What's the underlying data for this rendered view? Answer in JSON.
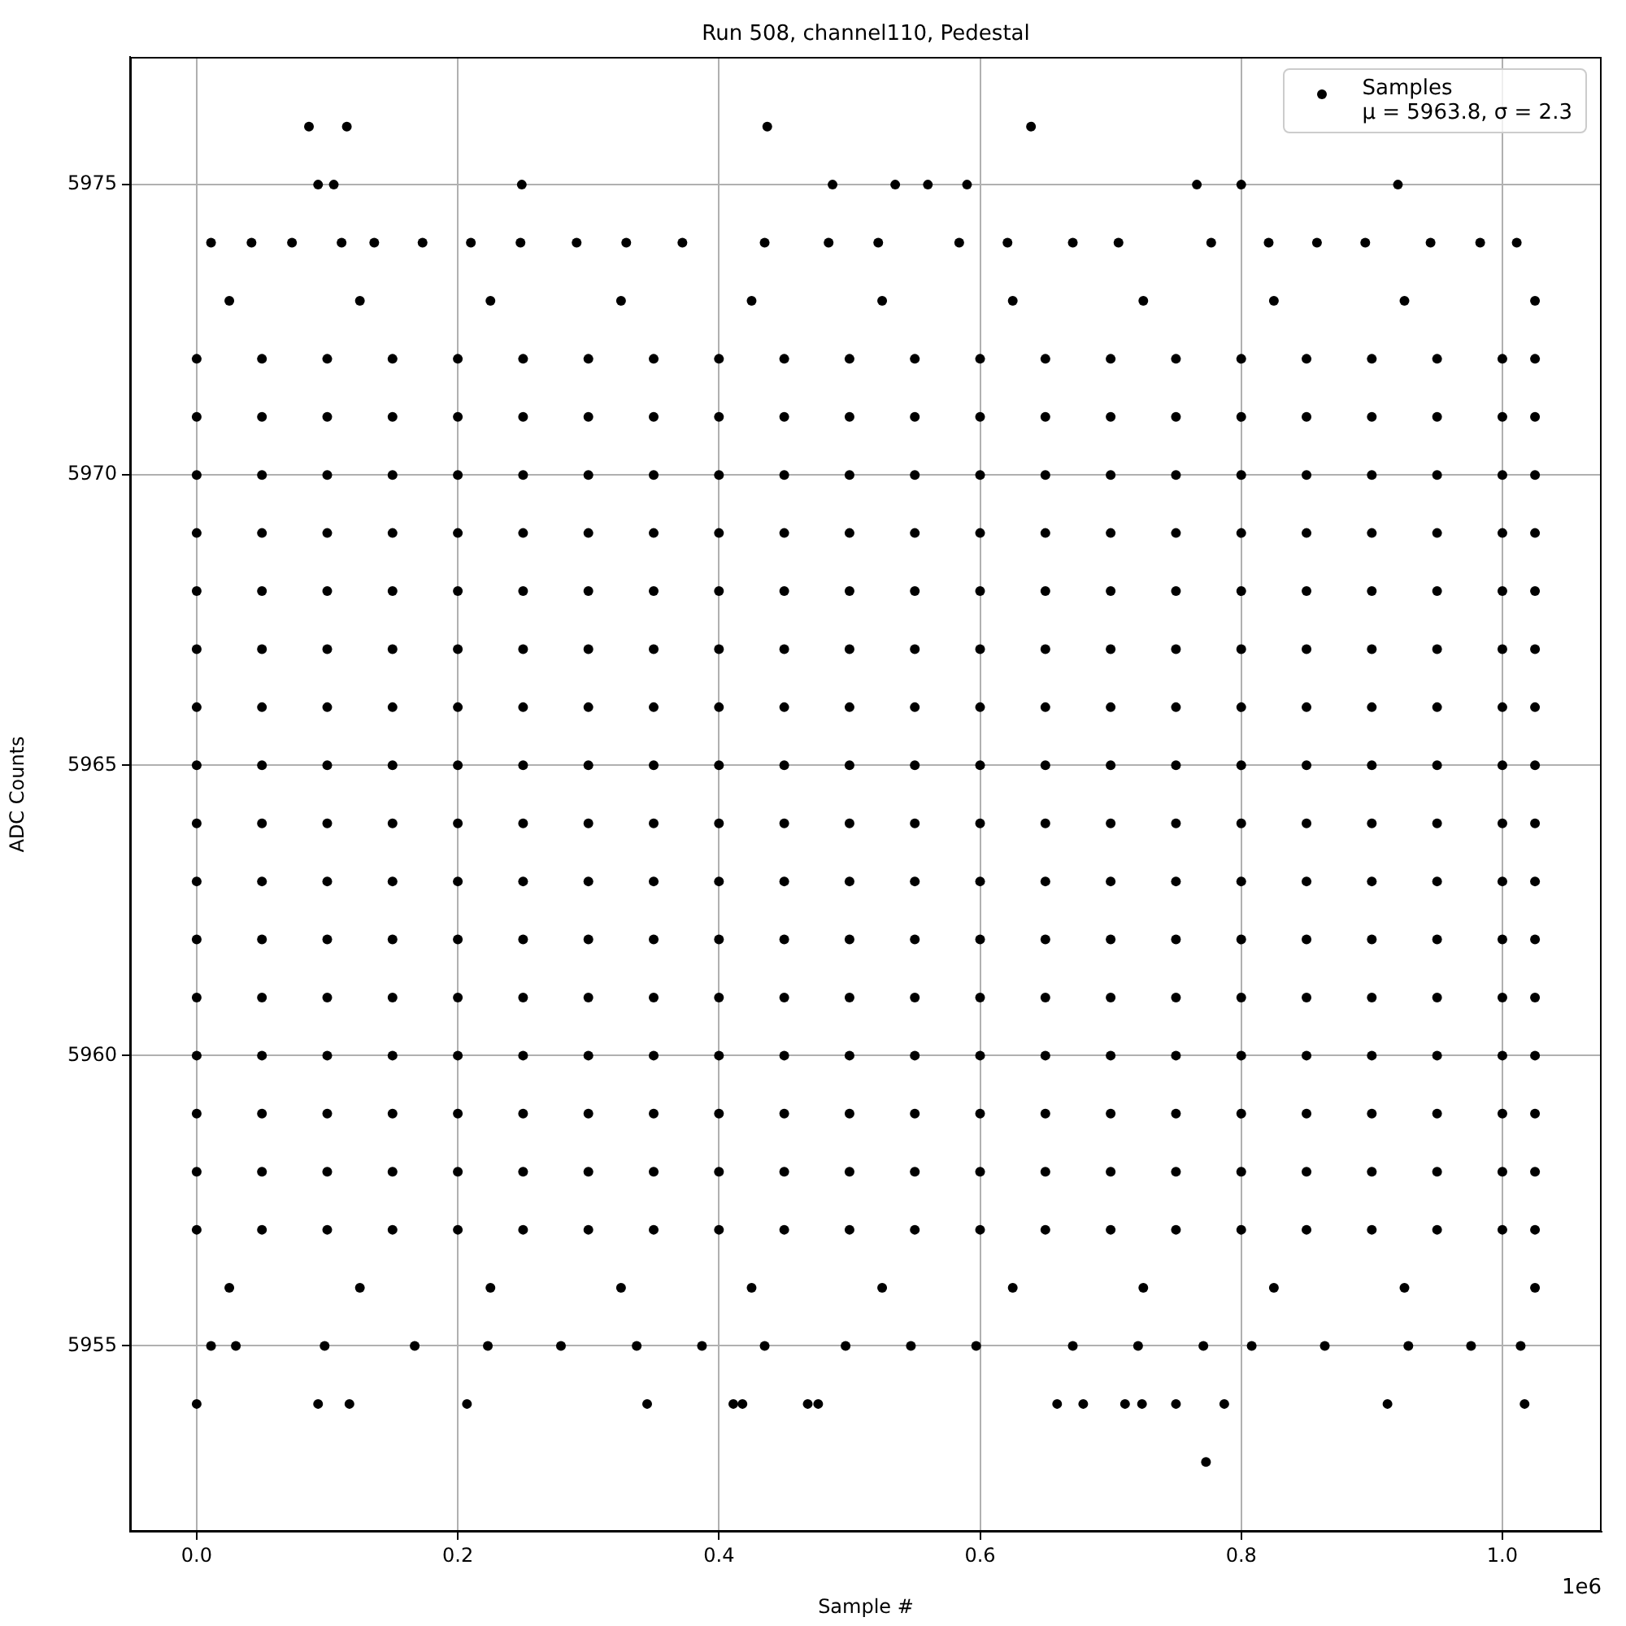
{
  "chart_data": {
    "type": "scatter",
    "title": "Run 508, channel110, Pedestal",
    "xlabel": "Sample #",
    "ylabel": "ADC Counts",
    "annotations": [
      "1e6"
    ],
    "xlim": [
      -0.051,
      1.076
    ],
    "ylim": [
      5951.8,
      5977.2
    ],
    "xticks": [
      {
        "value": 0,
        "label": "0.0"
      },
      0.2,
      0.4,
      0.6,
      0.8,
      {
        "value": 1,
        "label": "1.0"
      }
    ],
    "yticks": [
      5955,
      5960,
      5965,
      5970,
      5975
    ],
    "grid": true,
    "legend": "top right",
    "marker": "circle",
    "series": [
      {
        "name": "Samples\nμ = 5963.8, σ = 2.3",
        "color": "#000000",
        "x": [
          0,
          0.05,
          0.1,
          0.15,
          0.2,
          0.25,
          0.3,
          0.35,
          0.4,
          0.45,
          0.5,
          0.55,
          0.6,
          0.65,
          0.7,
          0.75,
          0.8,
          0.85,
          0.9,
          0.95,
          1,
          1.025,
          0,
          0.05,
          0.1,
          0.15,
          0.2,
          0.25,
          0.3,
          0.35,
          0.4,
          0.45,
          0.5,
          0.55,
          0.6,
          0.65,
          0.7,
          0.75,
          0.8,
          0.85,
          0.9,
          0.95,
          1,
          1.025,
          0,
          0.05,
          0.1,
          0.15,
          0.2,
          0.25,
          0.3,
          0.35,
          0.4,
          0.45,
          0.5,
          0.55,
          0.6,
          0.65,
          0.7,
          0.75,
          0.8,
          0.85,
          0.9,
          0.95,
          1,
          1.025,
          0,
          0.05,
          0.1,
          0.15,
          0.2,
          0.25,
          0.3,
          0.35,
          0.4,
          0.45,
          0.5,
          0.55,
          0.6,
          0.65,
          0.7,
          0.75,
          0.8,
          0.85,
          0.9,
          0.95,
          1,
          1.025,
          0,
          0.05,
          0.1,
          0.15,
          0.2,
          0.25,
          0.3,
          0.35,
          0.4,
          0.45,
          0.5,
          0.55,
          0.6,
          0.65,
          0.7,
          0.75,
          0.8,
          0.85,
          0.9,
          0.95,
          1,
          1.025,
          0,
          0.05,
          0.1,
          0.15,
          0.2,
          0.25,
          0.3,
          0.35,
          0.4,
          0.45,
          0.5,
          0.55,
          0.6,
          0.65,
          0.7,
          0.75,
          0.8,
          0.85,
          0.9,
          0.95,
          1,
          1.025,
          0,
          0.05,
          0.1,
          0.15,
          0.2,
          0.25,
          0.3,
          0.35,
          0.4,
          0.45,
          0.5,
          0.55,
          0.6,
          0.65,
          0.7,
          0.75,
          0.8,
          0.85,
          0.9,
          0.95,
          1,
          1.025,
          0,
          0.05,
          0.1,
          0.15,
          0.2,
          0.25,
          0.3,
          0.35,
          0.4,
          0.45,
          0.5,
          0.55,
          0.6,
          0.65,
          0.7,
          0.75,
          0.8,
          0.85,
          0.9,
          0.95,
          1,
          1.025,
          0,
          0.05,
          0.1,
          0.15,
          0.2,
          0.25,
          0.3,
          0.35,
          0.4,
          0.45,
          0.5,
          0.55,
          0.6,
          0.65,
          0.7,
          0.75,
          0.8,
          0.85,
          0.9,
          0.95,
          1,
          1.025,
          0,
          0.05,
          0.1,
          0.15,
          0.2,
          0.25,
          0.3,
          0.35,
          0.4,
          0.45,
          0.5,
          0.55,
          0.6,
          0.65,
          0.7,
          0.75,
          0.8,
          0.85,
          0.9,
          0.95,
          1,
          1.025,
          0,
          0.05,
          0.1,
          0.15,
          0.2,
          0.25,
          0.3,
          0.35,
          0.4,
          0.45,
          0.5,
          0.55,
          0.6,
          0.65,
          0.7,
          0.75,
          0.8,
          0.85,
          0.9,
          0.95,
          1,
          1.025,
          0,
          0.05,
          0.1,
          0.15,
          0.2,
          0.25,
          0.3,
          0.35,
          0.4,
          0.45,
          0.5,
          0.55,
          0.6,
          0.65,
          0.7,
          0.75,
          0.8,
          0.85,
          0.9,
          0.95,
          1,
          1.025,
          0,
          0.05,
          0.1,
          0.15,
          0.2,
          0.25,
          0.3,
          0.35,
          0.4,
          0.45,
          0.5,
          0.55,
          0.6,
          0.65,
          0.7,
          0.75,
          0.8,
          0.85,
          0.9,
          0.95,
          1,
          1.025,
          0,
          0.05,
          0.1,
          0.15,
          0.2,
          0.25,
          0.3,
          0.35,
          0.4,
          0.45,
          0.5,
          0.55,
          0.6,
          0.65,
          0.7,
          0.75,
          0.8,
          0.85,
          0.9,
          0.95,
          1,
          1.025,
          0,
          0.05,
          0.1,
          0.15,
          0.2,
          0.25,
          0.3,
          0.35,
          0.4,
          0.45,
          0.5,
          0.55,
          0.6,
          0.65,
          0.7,
          0.75,
          0.8,
          0.85,
          0.9,
          0.95,
          1,
          1.025,
          0,
          0.05,
          0.1,
          0.15,
          0.2,
          0.25,
          0.3,
          0.35,
          0.4,
          0.45,
          0.5,
          0.55,
          0.6,
          0.65,
          0.7,
          0.75,
          0.8,
          0.85,
          0.9,
          0.95,
          1,
          1.025,
          0.025,
          0.125,
          0.225,
          0.325,
          0.425,
          0.525,
          0.625,
          0.725,
          0.825,
          0.925,
          1.025,
          0.025,
          0.125,
          0.225,
          0.325,
          0.425,
          0.525,
          0.625,
          0.725,
          0.825,
          0.925,
          1.025,
          0.086,
          0.115,
          0.437,
          0.639,
          0.093,
          0.105,
          0.249,
          0.487,
          0.535,
          0.56,
          0.59,
          0.766,
          0.8,
          0.92,
          0.011,
          0.042,
          0.073,
          0.111,
          0.136,
          0.173,
          0.21,
          0.248,
          0.291,
          0.329,
          0.372,
          0.435,
          0.484,
          0.522,
          0.584,
          0.621,
          0.671,
          0.706,
          0.777,
          0.821,
          0.858,
          0.895,
          0.945,
          0.983,
          1.011,
          0.011,
          0.03,
          0.098,
          0.167,
          0.223,
          0.279,
          0.337,
          0.387,
          0.435,
          0.497,
          0.547,
          0.597,
          0.671,
          0.721,
          0.771,
          0.808,
          0.864,
          0.928,
          0.976,
          1.014,
          0,
          0.093,
          0.117,
          0.207,
          0.345,
          0.411,
          0.418,
          0.468,
          0.476,
          0.659,
          0.679,
          0.711,
          0.724,
          0.75,
          0.787,
          0.912,
          1.017,
          0.773
        ],
        "values": [
          5972,
          5972,
          5972,
          5972,
          5972,
          5972,
          5972,
          5972,
          5972,
          5972,
          5972,
          5972,
          5972,
          5972,
          5972,
          5972,
          5972,
          5972,
          5972,
          5972,
          5972,
          5972,
          5971,
          5971,
          5971,
          5971,
          5971,
          5971,
          5971,
          5971,
          5971,
          5971,
          5971,
          5971,
          5971,
          5971,
          5971,
          5971,
          5971,
          5971,
          5971,
          5971,
          5971,
          5971,
          5970,
          5970,
          5970,
          5970,
          5970,
          5970,
          5970,
          5970,
          5970,
          5970,
          5970,
          5970,
          5970,
          5970,
          5970,
          5970,
          5970,
          5970,
          5970,
          5970,
          5970,
          5970,
          5969,
          5969,
          5969,
          5969,
          5969,
          5969,
          5969,
          5969,
          5969,
          5969,
          5969,
          5969,
          5969,
          5969,
          5969,
          5969,
          5969,
          5969,
          5969,
          5969,
          5969,
          5969,
          5968,
          5968,
          5968,
          5968,
          5968,
          5968,
          5968,
          5968,
          5968,
          5968,
          5968,
          5968,
          5968,
          5968,
          5968,
          5968,
          5968,
          5968,
          5968,
          5968,
          5968,
          5968,
          5967,
          5967,
          5967,
          5967,
          5967,
          5967,
          5967,
          5967,
          5967,
          5967,
          5967,
          5967,
          5967,
          5967,
          5967,
          5967,
          5967,
          5967,
          5967,
          5967,
          5967,
          5967,
          5966,
          5966,
          5966,
          5966,
          5966,
          5966,
          5966,
          5966,
          5966,
          5966,
          5966,
          5966,
          5966,
          5966,
          5966,
          5966,
          5966,
          5966,
          5966,
          5966,
          5966,
          5966,
          5965,
          5965,
          5965,
          5965,
          5965,
          5965,
          5965,
          5965,
          5965,
          5965,
          5965,
          5965,
          5965,
          5965,
          5965,
          5965,
          5965,
          5965,
          5965,
          5965,
          5965,
          5965,
          5964,
          5964,
          5964,
          5964,
          5964,
          5964,
          5964,
          5964,
          5964,
          5964,
          5964,
          5964,
          5964,
          5964,
          5964,
          5964,
          5964,
          5964,
          5964,
          5964,
          5964,
          5964,
          5963,
          5963,
          5963,
          5963,
          5963,
          5963,
          5963,
          5963,
          5963,
          5963,
          5963,
          5963,
          5963,
          5963,
          5963,
          5963,
          5963,
          5963,
          5963,
          5963,
          5963,
          5963,
          5962,
          5962,
          5962,
          5962,
          5962,
          5962,
          5962,
          5962,
          5962,
          5962,
          5962,
          5962,
          5962,
          5962,
          5962,
          5962,
          5962,
          5962,
          5962,
          5962,
          5962,
          5962,
          5961,
          5961,
          5961,
          5961,
          5961,
          5961,
          5961,
          5961,
          5961,
          5961,
          5961,
          5961,
          5961,
          5961,
          5961,
          5961,
          5961,
          5961,
          5961,
          5961,
          5961,
          5961,
          5960,
          5960,
          5960,
          5960,
          5960,
          5960,
          5960,
          5960,
          5960,
          5960,
          5960,
          5960,
          5960,
          5960,
          5960,
          5960,
          5960,
          5960,
          5960,
          5960,
          5960,
          5960,
          5959,
          5959,
          5959,
          5959,
          5959,
          5959,
          5959,
          5959,
          5959,
          5959,
          5959,
          5959,
          5959,
          5959,
          5959,
          5959,
          5959,
          5959,
          5959,
          5959,
          5959,
          5959,
          5958,
          5958,
          5958,
          5958,
          5958,
          5958,
          5958,
          5958,
          5958,
          5958,
          5958,
          5958,
          5958,
          5958,
          5958,
          5958,
          5958,
          5958,
          5958,
          5958,
          5958,
          5958,
          5957,
          5957,
          5957,
          5957,
          5957,
          5957,
          5957,
          5957,
          5957,
          5957,
          5957,
          5957,
          5957,
          5957,
          5957,
          5957,
          5957,
          5957,
          5957,
          5957,
          5957,
          5957,
          5973,
          5973,
          5973,
          5973,
          5973,
          5973,
          5973,
          5973,
          5973,
          5973,
          5973,
          5956,
          5956,
          5956,
          5956,
          5956,
          5956,
          5956,
          5956,
          5956,
          5956,
          5956,
          5976,
          5976,
          5976,
          5976,
          5975,
          5975,
          5975,
          5975,
          5975,
          5975,
          5975,
          5975,
          5975,
          5975,
          5974,
          5974,
          5974,
          5974,
          5974,
          5974,
          5974,
          5974,
          5974,
          5974,
          5974,
          5974,
          5974,
          5974,
          5974,
          5974,
          5974,
          5974,
          5974,
          5974,
          5974,
          5974,
          5974,
          5974,
          5974,
          5955,
          5955,
          5955,
          5955,
          5955,
          5955,
          5955,
          5955,
          5955,
          5955,
          5955,
          5955,
          5955,
          5955,
          5955,
          5955,
          5955,
          5955,
          5955,
          5955,
          5954,
          5954,
          5954,
          5954,
          5954,
          5954,
          5954,
          5954,
          5954,
          5954,
          5954,
          5954,
          5954,
          5954,
          5954,
          5954,
          5954,
          5953
        ]
      }
    ]
  }
}
